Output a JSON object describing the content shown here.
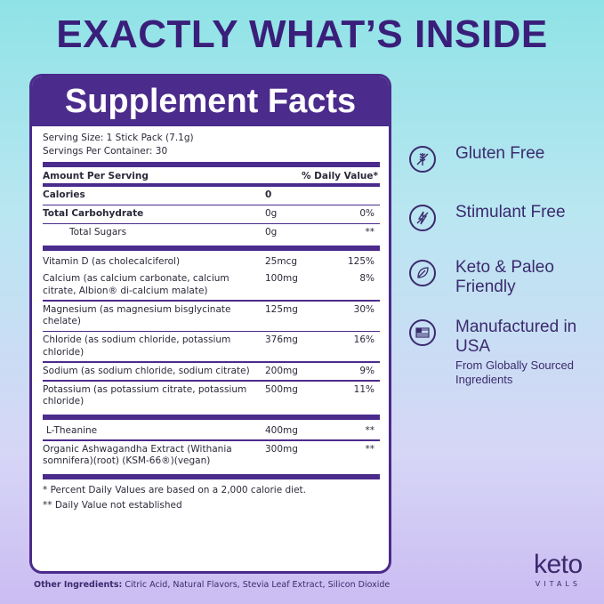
{
  "headline": "EXACTLY WHAT’S INSIDE",
  "panel": {
    "title": "Supplement Facts",
    "serving_size": "Serving Size: 1 Stick Pack (7.1g)",
    "servings_per_container": "Servings Per Container: 30",
    "header_amount": "Amount Per Serving",
    "header_dv": "% Daily Value*",
    "rows": [
      {
        "name": "Calories",
        "amount": "0",
        "dv": ""
      },
      {
        "name": "Total Carbohydrate",
        "amount": "0g",
        "dv": "0%"
      },
      {
        "name": "Total Sugars",
        "amount": "0g",
        "dv": "**"
      },
      {
        "name": "Vitamin D (as cholecalciferol)",
        "amount": "25mcg",
        "dv": "125%"
      },
      {
        "name": "Calcium (as calcium carbonate, calcium citrate, Albion® di-calcium malate)",
        "amount": "100mg",
        "dv": "8%"
      },
      {
        "name": "Magnesium (as magnesium bisglycinate chelate)",
        "amount": "125mg",
        "dv": "30%"
      },
      {
        "name": "Chloride (as sodium chloride, potassium chloride)",
        "amount": "376mg",
        "dv": "16%"
      },
      {
        "name": "Sodium (as sodium chloride, sodium citrate)",
        "amount": "200mg",
        "dv": "9%"
      },
      {
        "name": "Potassium (as potassium citrate, potassium chloride)",
        "amount": "500mg",
        "dv": "11%"
      },
      {
        "name": "L-Theanine",
        "amount": "400mg",
        "dv": "**"
      },
      {
        "name": "Organic Ashwagandha Extract (Withania somnifera)(root) (KSM-66®)(vegan)",
        "amount": "300mg",
        "dv": "**"
      }
    ],
    "footnote_1": "* Percent Daily Values are based on a 2,000 calorie diet.",
    "footnote_2": "** Daily Value not established"
  },
  "features": [
    {
      "icon": "wheat-icon",
      "label": "Gluten Free",
      "sub": ""
    },
    {
      "icon": "lightning-icon",
      "label": "Stimulant Free",
      "sub": ""
    },
    {
      "icon": "leaf-icon",
      "label": "Keto & Paleo Friendly",
      "sub": ""
    },
    {
      "icon": "flag-icon",
      "label": "Manufactured in USA",
      "sub": "From Globally Sourced Ingredients"
    }
  ],
  "other_ingredients": {
    "label": "Other Ingredients:",
    "text": " Citric Acid, Natural Flavors, Stevia Leaf Extract, Silicon Dioxide"
  },
  "logo": {
    "word": "keto",
    "sub": "VITALS"
  },
  "colors": {
    "primary": "#4b2b8c",
    "text": "#3b2a6e"
  }
}
